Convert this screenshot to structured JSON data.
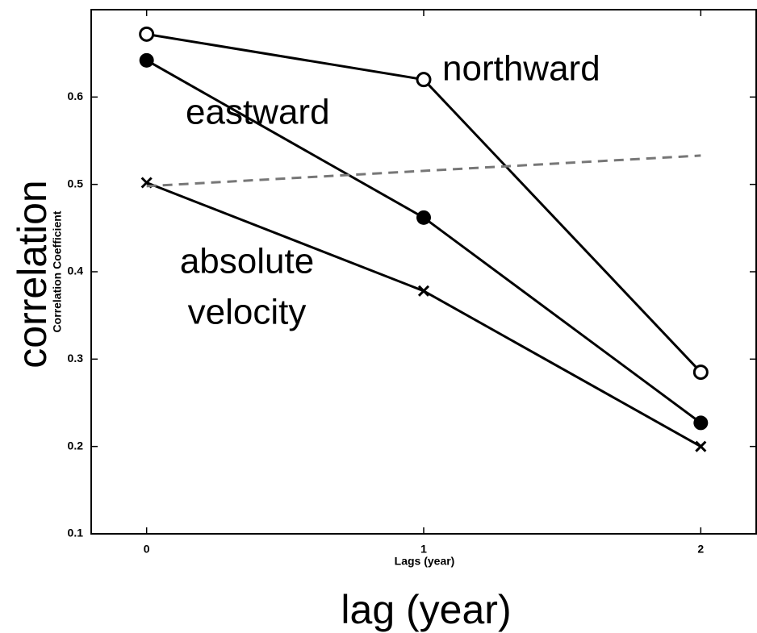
{
  "chart_data": {
    "type": "line",
    "xlabel": "Lags (year)",
    "ylabel": "Correlation Coefficient",
    "x": [
      0,
      1,
      2
    ],
    "series": [
      {
        "name": "northward",
        "color": "#000000",
        "marker": "open-circle",
        "dash": "solid",
        "values": [
          0.672,
          0.62,
          0.285
        ]
      },
      {
        "name": "eastward",
        "color": "#000000",
        "marker": "filled-circle",
        "dash": "solid",
        "values": [
          0.642,
          0.462,
          0.227
        ]
      },
      {
        "name": "absolute velocity",
        "color": "#000000",
        "marker": "x",
        "dash": "solid",
        "values": [
          0.502,
          0.378,
          0.2
        ]
      },
      {
        "color": "#777777",
        "marker": "none",
        "dash": "dashed",
        "values": [
          0.498,
          null,
          0.533
        ]
      }
    ],
    "annotations": [
      "northward",
      "eastward",
      "absolute",
      "velocity",
      "correlation",
      "lag (year)"
    ],
    "xlim": [
      -0.2,
      2.2
    ],
    "ylim": [
      0.1,
      0.7
    ],
    "xticks": [
      0,
      1,
      2
    ],
    "yticks": [
      0.1,
      0.2,
      0.3,
      0.4,
      0.5,
      0.6
    ]
  }
}
